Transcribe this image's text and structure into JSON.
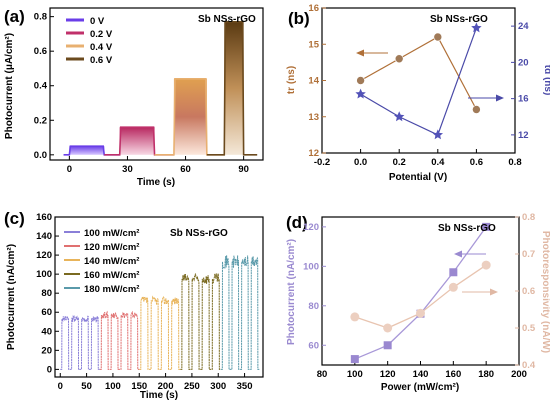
{
  "chart_data": [
    {
      "panel": "(a)",
      "type": "line",
      "annotation": "Sb NSs-rGO",
      "xlabel": "Time (s)",
      "ylabel": "Photocurrent (μA/cm²)",
      "xlim": [
        -10,
        100
      ],
      "ylim": [
        -0.03,
        0.85
      ],
      "xticks": [
        0,
        30,
        60,
        90
      ],
      "yticks": [
        0.0,
        0.2,
        0.4,
        0.6,
        0.8
      ],
      "ytick_labels": [
        "0.0",
        "0.2",
        "0.4",
        "0.6",
        "0.8"
      ],
      "legend": [
        "0  V",
        "0.2 V",
        "0.4 V",
        "0.6 V"
      ],
      "series": [
        {
          "name": "0  V",
          "color": "#6a3ee8",
          "on": [
            0,
            18
          ],
          "level": 0.05
        },
        {
          "name": "0.2 V",
          "color": "#c0306a",
          "on": [
            26,
            44
          ],
          "level": 0.16
        },
        {
          "name": "0.4 V",
          "color": "#e8b070",
          "on": [
            54,
            71
          ],
          "level": 0.44
        },
        {
          "name": "0.6 V",
          "color": "#6b4a1e",
          "on": [
            80,
            90
          ],
          "level": 0.77
        }
      ]
    },
    {
      "panel": "(b)",
      "type": "line",
      "annotation": "Sb NSs-rGO",
      "xlabel": "Potential (V)",
      "ylabel_left": "tr (ns)",
      "ylabel_right": "td (ns)",
      "xlim": [
        -0.2,
        0.8
      ],
      "ylim_left": [
        12,
        16
      ],
      "ylim_right": [
        10,
        26
      ],
      "xticks": [
        -0.2,
        0.0,
        0.2,
        0.4,
        0.6,
        0.8
      ],
      "xtick_labels": [
        "-0.2",
        "0.0",
        "0.2",
        "0.4",
        "0.6",
        "0.8"
      ],
      "yticks_left": [
        12,
        13,
        14,
        15,
        16
      ],
      "yticks_right": [
        12,
        16,
        20,
        24
      ],
      "series": [
        {
          "name": "tr",
          "axis": "left",
          "color": "#b07038",
          "x": [
            0.0,
            0.2,
            0.4,
            0.6
          ],
          "y": [
            14.0,
            14.6,
            15.2,
            13.2
          ]
        },
        {
          "name": "td",
          "axis": "right",
          "color": "#4a4aa8",
          "x": [
            0.0,
            0.2,
            0.4,
            0.6
          ],
          "y": [
            16.5,
            14.0,
            12.0,
            23.8
          ]
        }
      ]
    },
    {
      "panel": "(c)",
      "type": "line",
      "annotation": "Sb NSs-rGO",
      "xlabel": "Time (s)",
      "ylabel": "Photocurrent (nA/cm²)",
      "xlim": [
        -10,
        385
      ],
      "ylim": [
        -8,
        160
      ],
      "xticks": [
        0,
        50,
        100,
        150,
        200,
        250,
        300,
        350
      ],
      "yticks": [
        0,
        20,
        40,
        60,
        80,
        100,
        120,
        140,
        160
      ],
      "legend": [
        "100 mW/cm²",
        "120 mW/cm²",
        "140 mW/cm²",
        "160 mW/cm²",
        "180 mW/cm²"
      ],
      "series": [
        {
          "name": "100 mW/cm²",
          "color": "#8a7fd8",
          "start": 0,
          "end": 75,
          "level": 53
        },
        {
          "name": "120 mW/cm²",
          "color": "#e07070",
          "start": 75,
          "end": 150,
          "level": 57
        },
        {
          "name": "140 mW/cm²",
          "color": "#e8b45a",
          "start": 150,
          "end": 228,
          "level": 72
        },
        {
          "name": "160 mW/cm²",
          "color": "#7a6a20",
          "start": 228,
          "end": 305,
          "level": 95
        },
        {
          "name": "180 mW/cm²",
          "color": "#5a9aaa",
          "start": 305,
          "end": 378,
          "level": 113
        }
      ]
    },
    {
      "panel": "(d)",
      "type": "line",
      "annotation": "Sb NSs-rGO",
      "xlabel": "Power (mW/cm²)",
      "ylabel_left": "Photocurrent (nA/cm²)",
      "ylabel_right": "Photoresponsivity (nA/W)",
      "xlim": [
        80,
        200
      ],
      "ylim_left": [
        50,
        125
      ],
      "ylim_right": [
        0.4,
        0.8
      ],
      "xticks": [
        80,
        100,
        120,
        140,
        160,
        180,
        200
      ],
      "yticks_left": [
        60,
        80,
        100,
        120
      ],
      "yticks_right": [
        0.4,
        0.5,
        0.6,
        0.7,
        0.8
      ],
      "ytick_right_labels": [
        "0.4",
        "0.5",
        "0.6",
        "0.7",
        "0.8"
      ],
      "series": [
        {
          "name": "Photocurrent",
          "axis": "left",
          "color": "#a898d8",
          "x": [
            100,
            120,
            140,
            160,
            180
          ],
          "y": [
            53,
            60,
            76,
            97,
            120
          ]
        },
        {
          "name": "Photoresponsivity",
          "axis": "right",
          "color": "#e8c4b0",
          "x": [
            100,
            120,
            140,
            160,
            180
          ],
          "y": [
            0.53,
            0.5,
            0.54,
            0.61,
            0.67
          ]
        }
      ]
    }
  ]
}
